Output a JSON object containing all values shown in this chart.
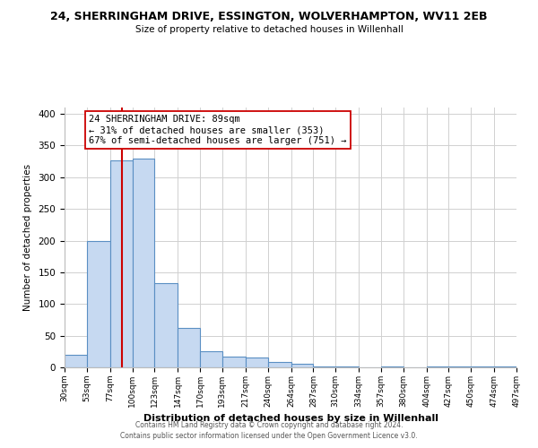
{
  "title": "24, SHERRINGHAM DRIVE, ESSINGTON, WOLVERHAMPTON, WV11 2EB",
  "subtitle": "Size of property relative to detached houses in Willenhall",
  "xlabel": "Distribution of detached houses by size in Willenhall",
  "ylabel": "Number of detached properties",
  "bin_edges": [
    30,
    53,
    77,
    100,
    123,
    147,
    170,
    193,
    217,
    240,
    264,
    287,
    310,
    334,
    357,
    380,
    404,
    427,
    450,
    474,
    497
  ],
  "bar_heights": [
    20,
    200,
    327,
    330,
    133,
    62,
    25,
    17,
    16,
    8,
    5,
    2,
    1,
    0,
    1,
    0,
    1,
    1,
    1,
    1
  ],
  "bar_color": "#c6d9f1",
  "bar_edge_color": "#5a8fc3",
  "vline_x": 89,
  "vline_color": "#cc0000",
  "annotation_title": "24 SHERRINGHAM DRIVE: 89sqm",
  "annotation_line1": "← 31% of detached houses are smaller (353)",
  "annotation_line2": "67% of semi-detached houses are larger (751) →",
  "annotation_box_color": "#ffffff",
  "annotation_box_edge": "#cc0000",
  "ylim": [
    0,
    410
  ],
  "yticks": [
    0,
    50,
    100,
    150,
    200,
    250,
    300,
    350,
    400
  ],
  "tick_labels": [
    "30sqm",
    "53sqm",
    "77sqm",
    "100sqm",
    "123sqm",
    "147sqm",
    "170sqm",
    "193sqm",
    "217sqm",
    "240sqm",
    "264sqm",
    "287sqm",
    "310sqm",
    "334sqm",
    "357sqm",
    "380sqm",
    "404sqm",
    "427sqm",
    "450sqm",
    "474sqm",
    "497sqm"
  ],
  "footer1": "Contains HM Land Registry data © Crown copyright and database right 2024.",
  "footer2": "Contains public sector information licensed under the Open Government Licence v3.0.",
  "bg_color": "#ffffff",
  "grid_color": "#d0d0d0"
}
